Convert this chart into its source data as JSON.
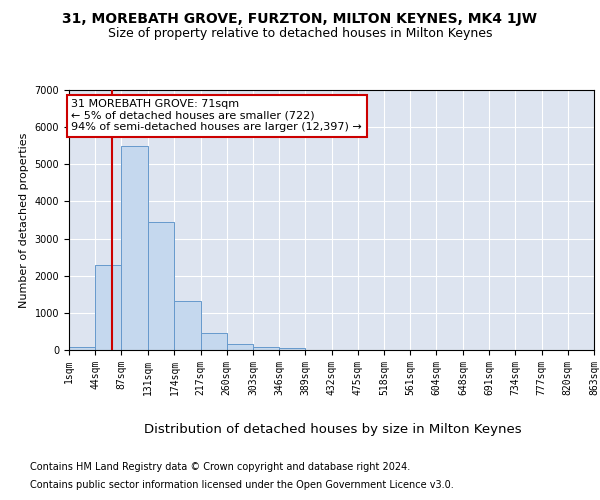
{
  "title": "31, MOREBATH GROVE, FURZTON, MILTON KEYNES, MK4 1JW",
  "subtitle": "Size of property relative to detached houses in Milton Keynes",
  "xlabel": "Distribution of detached houses by size in Milton Keynes",
  "ylabel": "Number of detached properties",
  "bar_color": "#c5d8ee",
  "bar_edge_color": "#6699cc",
  "background_color": "#dde4f0",
  "grid_color": "#ffffff",
  "vline_x": 71,
  "vline_color": "#cc0000",
  "annotation_line1": "31 MOREBATH GROVE: 71sqm",
  "annotation_line2": "← 5% of detached houses are smaller (722)",
  "annotation_line3": "94% of semi-detached houses are larger (12,397) →",
  "annotation_box_color": "white",
  "annotation_box_edge": "#cc0000",
  "ylim_max": 7000,
  "yticks": [
    0,
    1000,
    2000,
    3000,
    4000,
    5000,
    6000,
    7000
  ],
  "bin_edges": [
    1,
    44,
    87,
    131,
    174,
    217,
    260,
    303,
    346,
    389,
    432,
    475,
    518,
    561,
    604,
    648,
    691,
    734,
    777,
    820,
    863
  ],
  "bin_heights": [
    70,
    2300,
    5480,
    3450,
    1310,
    460,
    155,
    80,
    55,
    0,
    0,
    0,
    0,
    0,
    0,
    0,
    0,
    0,
    0,
    0
  ],
  "tick_labels": [
    "1sqm",
    "44sqm",
    "87sqm",
    "131sqm",
    "174sqm",
    "217sqm",
    "260sqm",
    "303sqm",
    "346sqm",
    "389sqm",
    "432sqm",
    "475sqm",
    "518sqm",
    "561sqm",
    "604sqm",
    "648sqm",
    "691sqm",
    "734sqm",
    "777sqm",
    "820sqm",
    "863sqm"
  ],
  "footer_text1": "Contains HM Land Registry data © Crown copyright and database right 2024.",
  "footer_text2": "Contains public sector information licensed under the Open Government Licence v3.0.",
  "title_fontsize": 10,
  "subtitle_fontsize": 9,
  "xlabel_fontsize": 9.5,
  "ylabel_fontsize": 8,
  "tick_fontsize": 7,
  "footer_fontsize": 7,
  "annot_fontsize": 8
}
